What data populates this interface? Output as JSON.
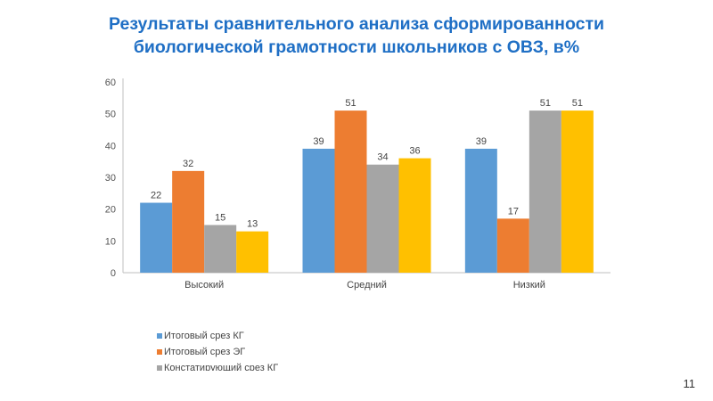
{
  "title": {
    "line1": "Результаты сравнительного анализа сформированности",
    "line2": "биологической грамотности школьников с ОВЗ, в%"
  },
  "page_number": "11",
  "chart_data": {
    "type": "bar",
    "title": "",
    "categories": [
      "Высокий",
      "Средний",
      "Низкий"
    ],
    "series": [
      {
        "name": "Итоговый срез КГ",
        "color": "#5b9bd5",
        "values": [
          22,
          39,
          39
        ]
      },
      {
        "name": "Итоговый срез ЭГ",
        "color": "#ed7d31",
        "values": [
          32,
          51,
          17
        ]
      },
      {
        "name": "Констатирующий срез КГ",
        "color": "#a5a5a5",
        "values": [
          15,
          34,
          51
        ]
      },
      {
        "name": "",
        "color": "#ffc000",
        "values": [
          13,
          36,
          51
        ]
      }
    ],
    "yticks": [
      0,
      10,
      20,
      30,
      40,
      50,
      60
    ],
    "ylim": [
      0,
      60
    ],
    "legend": "bottom-left",
    "grid": false
  }
}
